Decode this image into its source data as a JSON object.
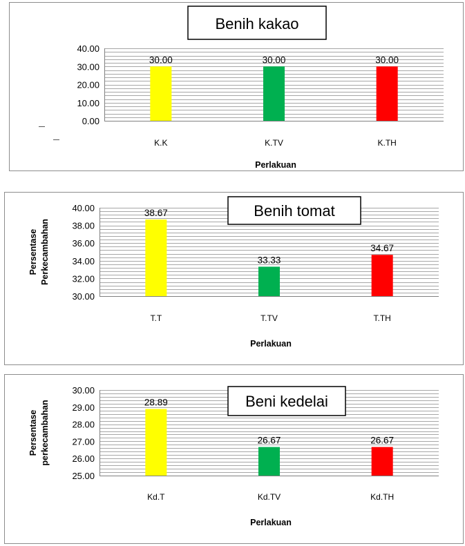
{
  "chart_data": [
    {
      "type": "bar",
      "title": "Benih kakao",
      "categories": [
        "K.K",
        "K.TV",
        "K.TH"
      ],
      "values": [
        30.0,
        30.0,
        30.0
      ],
      "data_labels": [
        "30.00",
        "30.00",
        "30.00"
      ],
      "colors": [
        "#ffff00",
        "#00b050",
        "#ff0000"
      ],
      "xlabel": "Perlakuan",
      "ylabel": "",
      "ylim": [
        0,
        40
      ],
      "yticks": [
        "0.00",
        "10.00",
        "20.00",
        "30.00",
        "40.00"
      ],
      "grid": true,
      "legend": "none"
    },
    {
      "type": "bar",
      "title": "Benih tomat",
      "categories": [
        "T.T",
        "T.TV",
        "T.TH"
      ],
      "values": [
        38.67,
        33.33,
        34.67
      ],
      "data_labels": [
        "38.67",
        "33.33",
        "34.67"
      ],
      "colors": [
        "#ffff00",
        "#00b050",
        "#ff0000"
      ],
      "xlabel": "Perlakuan",
      "ylabel_lines": [
        "Persentase",
        "Perkecambahan"
      ],
      "ylim": [
        30,
        40
      ],
      "yticks": [
        "30.00",
        "32.00",
        "34.00",
        "36.00",
        "38.00",
        "40.00"
      ],
      "grid": true,
      "legend": "none"
    },
    {
      "type": "bar",
      "title": "Beni kedelai",
      "categories": [
        "Kd.T",
        "Kd.TV",
        "Kd.TH"
      ],
      "values": [
        28.89,
        26.67,
        26.67
      ],
      "data_labels": [
        "28.89",
        "26.67",
        "26.67"
      ],
      "colors": [
        "#ffff00",
        "#00b050",
        "#ff0000"
      ],
      "xlabel": "Perlakuan",
      "ylabel_lines": [
        "Persentase",
        "perkecambahan"
      ],
      "ylim": [
        25,
        30
      ],
      "yticks": [
        "25.00",
        "26.00",
        "27.00",
        "28.00",
        "29.00",
        "30.00"
      ],
      "grid": true,
      "legend": "none"
    }
  ]
}
